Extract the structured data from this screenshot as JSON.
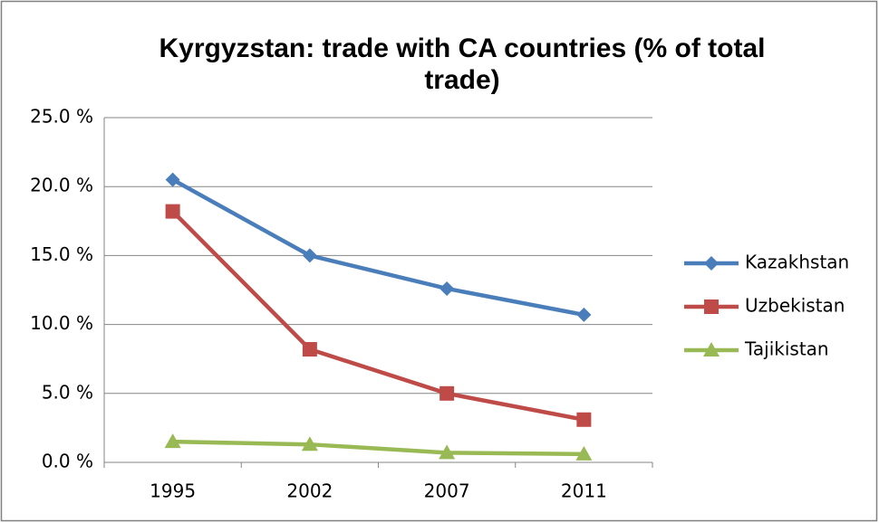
{
  "chart_data": {
    "type": "line",
    "title": "Kyrgyzstan: trade with CA countries (% of total trade)",
    "categories": [
      "1995",
      "2002",
      "2007",
      "2011"
    ],
    "series": [
      {
        "name": "Kazakhstan",
        "color": "#4a7ebb",
        "marker": "diamond",
        "values": [
          20.5,
          15.0,
          12.6,
          10.7
        ]
      },
      {
        "name": "Uzbekistan",
        "color": "#be4b48",
        "marker": "square",
        "values": [
          18.2,
          8.2,
          5.0,
          3.1
        ]
      },
      {
        "name": "Tajikistan",
        "color": "#98b954",
        "marker": "triangle",
        "values": [
          1.5,
          1.3,
          0.7,
          0.6
        ]
      }
    ],
    "ylim": [
      0,
      25
    ],
    "yticks": [
      {
        "value": 0,
        "label": "0.0 %"
      },
      {
        "value": 5,
        "label": "5.0 %"
      },
      {
        "value": 10,
        "label": "10.0 %"
      },
      {
        "value": 15,
        "label": "15.0 %"
      },
      {
        "value": 20,
        "label": "20.0 %"
      },
      {
        "value": 25,
        "label": "25.0 %"
      }
    ],
    "grid": true,
    "legend": "right"
  }
}
